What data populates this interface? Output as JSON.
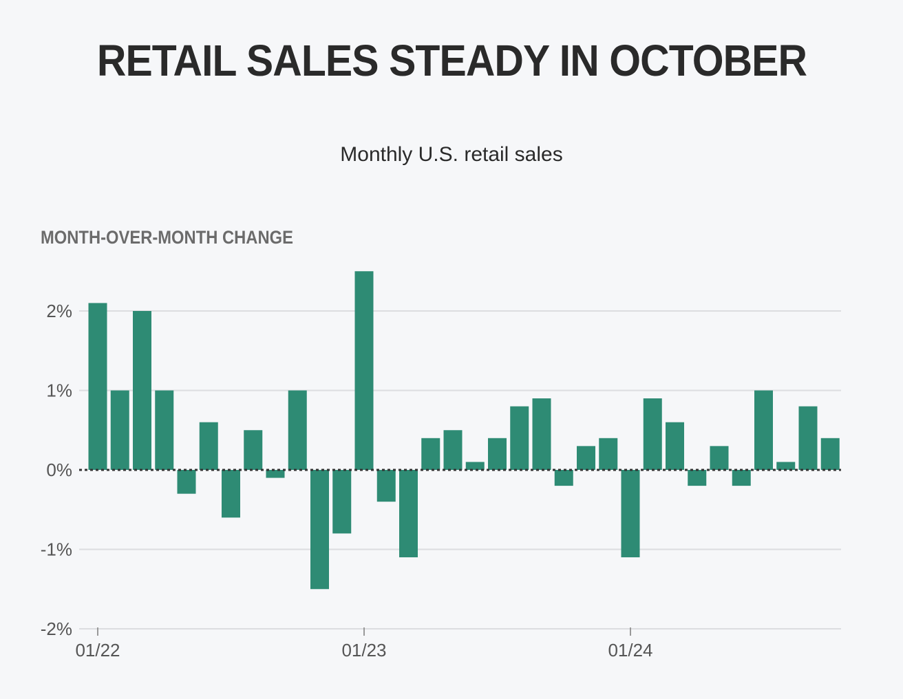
{
  "title": "RETAIL SALES STEADY IN OCTOBER",
  "subtitle": "Monthly U.S. retail sales",
  "colors": {
    "bar": "#2e8b74",
    "grid": "#dcdde0",
    "zero": "#333333",
    "background": "#f6f7f9"
  },
  "chart_data": {
    "type": "bar",
    "title": "RETAIL SALES STEADY IN OCTOBER",
    "subtitle": "Monthly U.S. retail sales",
    "ylabel": "MONTH-OVER-MONTH CHANGE",
    "xlabel": "",
    "ylim": [
      -2,
      2.5
    ],
    "yticks": [
      2,
      1,
      0,
      -1,
      -2
    ],
    "ytick_labels": [
      "2%",
      "1%",
      "0%",
      "-1%",
      "-2%"
    ],
    "xtick_labels": [
      "01/22",
      "01/23",
      "01/24"
    ],
    "grid": true,
    "categories": [
      "01/22",
      "02/22",
      "03/22",
      "04/22",
      "05/22",
      "06/22",
      "07/22",
      "08/22",
      "09/22",
      "10/22",
      "11/22",
      "12/22",
      "01/23",
      "02/23",
      "03/23",
      "04/23",
      "05/23",
      "06/23",
      "07/23",
      "08/23",
      "09/23",
      "10/23",
      "11/23",
      "12/23",
      "01/24",
      "02/24",
      "03/24",
      "04/24",
      "05/24",
      "06/24",
      "07/24",
      "08/24",
      "09/24",
      "10/24"
    ],
    "values": [
      2.1,
      1.0,
      2.0,
      1.0,
      -0.3,
      0.6,
      -0.6,
      0.5,
      -0.1,
      1.0,
      -1.5,
      -0.8,
      2.5,
      -0.4,
      -1.1,
      0.4,
      0.5,
      0.1,
      0.4,
      0.8,
      0.9,
      -0.2,
      0.3,
      0.4,
      -1.1,
      0.9,
      0.6,
      -0.2,
      0.3,
      -0.2,
      1.0,
      0.1,
      0.8,
      0.4
    ]
  }
}
